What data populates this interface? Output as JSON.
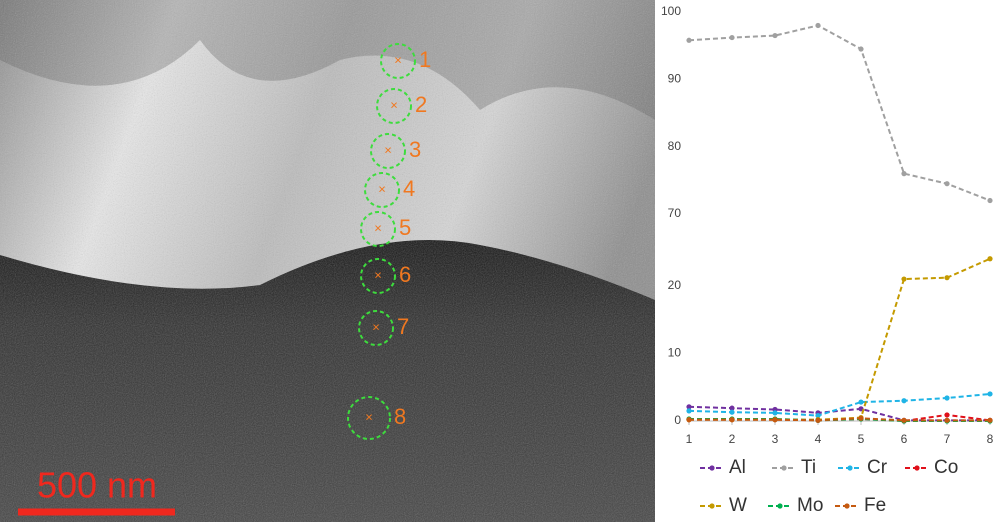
{
  "image": {
    "scale_bar": "500 nm",
    "points": [
      "1",
      "2",
      "3",
      "4",
      "5",
      "6",
      "7",
      "8"
    ]
  },
  "chart_data": {
    "type": "line",
    "x": [
      1,
      2,
      3,
      4,
      5,
      6,
      7,
      8
    ],
    "xlim": [
      1,
      8
    ],
    "xticks": [
      1,
      2,
      3,
      4,
      5,
      6,
      7,
      8
    ],
    "ylim": [
      0,
      25
    ],
    "yticks": [
      0,
      10,
      20
    ],
    "y2lim": [
      70,
      100
    ],
    "y2ticks": [
      70,
      80,
      90,
      100
    ],
    "grid": false,
    "legend": "bottom",
    "series": [
      {
        "name": "Al",
        "color": "#7030a0",
        "values": [
          2.1,
          1.9,
          1.7,
          1.2,
          1.8,
          0.1,
          0.1,
          0.1
        ]
      },
      {
        "name": "Ti",
        "color": "#a0a0a0",
        "axis": "y2",
        "values": [
          95.8,
          96.2,
          96.5,
          98,
          94.5,
          76,
          74.5,
          72
        ]
      },
      {
        "name": "Cr",
        "color": "#1fb4e6",
        "values": [
          1.5,
          1.3,
          1.2,
          0.8,
          2.8,
          3,
          3.4,
          4
        ]
      },
      {
        "name": "Co",
        "color": "#e0101a",
        "values": [
          0.2,
          0.2,
          0.2,
          0.1,
          0.3,
          0,
          0.9,
          0.1
        ]
      },
      {
        "name": "W",
        "color": "#c49a00",
        "values": [
          0.2,
          0.2,
          0.2,
          0.2,
          0.5,
          21,
          21.2,
          24
        ]
      },
      {
        "name": "Mo",
        "color": "#00b050",
        "values": [
          0.3,
          0.3,
          0.3,
          0.1,
          0.3,
          0,
          0,
          0
        ]
      },
      {
        "name": "Fe",
        "color": "#c55a11",
        "values": [
          0.2,
          0.2,
          0.2,
          0.1,
          0.4,
          0.1,
          0.1,
          0.1
        ]
      }
    ]
  }
}
